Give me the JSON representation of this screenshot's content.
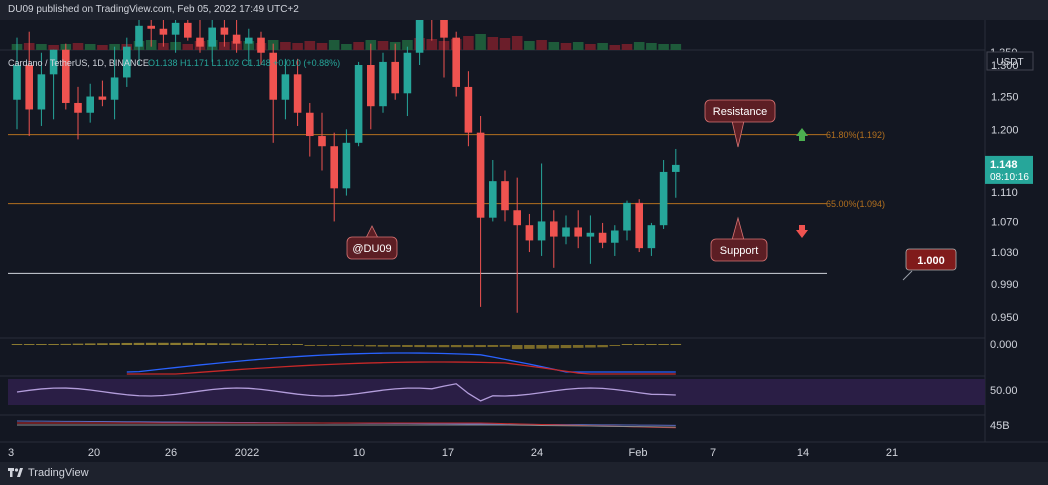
{
  "header": {
    "published": "DU09 published on TradingView.com, Feb 05, 2022 17:49 UTC+2"
  },
  "footer": {
    "brand": "TradingView"
  },
  "legend": {
    "symbol": "Cardano / TetherUS, 1D, BINANCE",
    "ohlc": "O1.138  H1.171  L1.102  C1.148  +0.010 (+0.88%)"
  },
  "colors": {
    "up": "#26a69a",
    "down": "#ef5350",
    "bg": "#131722",
    "fib": "#b2701f",
    "rsi_band": "#2a1e45",
    "rsi_line": "#b39ddb"
  },
  "chart_data": {
    "type": "candlestick",
    "title": "Cardano / TetherUS, 1D, BINANCE",
    "y_axis": {
      "unit": "USDT",
      "ticks": [
        "1.300",
        "1.250",
        "1.200",
        "1.150",
        "1.110",
        "1.070",
        "1.030",
        "0.990",
        "0.950"
      ],
      "scale": "log"
    },
    "x_axis": {
      "ticks": [
        "3",
        "20",
        "26",
        "2022",
        "10",
        "17",
        "24",
        "Feb",
        "7",
        "14",
        "21"
      ]
    },
    "candles": [
      {
        "o": 1.245,
        "h": 1.345,
        "l": 1.2,
        "c": 1.3
      },
      {
        "o": 1.3,
        "h": 1.355,
        "l": 1.19,
        "c": 1.23
      },
      {
        "o": 1.23,
        "h": 1.32,
        "l": 1.205,
        "c": 1.285
      },
      {
        "o": 1.285,
        "h": 1.325,
        "l": 1.215,
        "c": 1.325
      },
      {
        "o": 1.325,
        "h": 1.335,
        "l": 1.23,
        "c": 1.24
      },
      {
        "o": 1.24,
        "h": 1.265,
        "l": 1.185,
        "c": 1.225
      },
      {
        "o": 1.225,
        "h": 1.27,
        "l": 1.21,
        "c": 1.25
      },
      {
        "o": 1.25,
        "h": 1.275,
        "l": 1.235,
        "c": 1.245
      },
      {
        "o": 1.245,
        "h": 1.33,
        "l": 1.215,
        "c": 1.28
      },
      {
        "o": 1.28,
        "h": 1.345,
        "l": 1.265,
        "c": 1.33
      },
      {
        "o": 1.33,
        "h": 1.38,
        "l": 1.3,
        "c": 1.365
      },
      {
        "o": 1.365,
        "h": 1.38,
        "l": 1.33,
        "c": 1.36
      },
      {
        "o": 1.36,
        "h": 1.375,
        "l": 1.33,
        "c": 1.35
      },
      {
        "o": 1.35,
        "h": 1.38,
        "l": 1.32,
        "c": 1.37
      },
      {
        "o": 1.37,
        "h": 1.38,
        "l": 1.34,
        "c": 1.345
      },
      {
        "o": 1.345,
        "h": 1.375,
        "l": 1.32,
        "c": 1.33
      },
      {
        "o": 1.33,
        "h": 1.375,
        "l": 1.305,
        "c": 1.362
      },
      {
        "o": 1.362,
        "h": 1.375,
        "l": 1.33,
        "c": 1.35
      },
      {
        "o": 1.35,
        "h": 1.375,
        "l": 1.32,
        "c": 1.335
      },
      {
        "o": 1.335,
        "h": 1.36,
        "l": 1.3,
        "c": 1.345
      },
      {
        "o": 1.345,
        "h": 1.355,
        "l": 1.3,
        "c": 1.32
      },
      {
        "o": 1.32,
        "h": 1.335,
        "l": 1.18,
        "c": 1.245
      },
      {
        "o": 1.245,
        "h": 1.31,
        "l": 1.215,
        "c": 1.285
      },
      {
        "o": 1.285,
        "h": 1.31,
        "l": 1.205,
        "c": 1.225
      },
      {
        "o": 1.225,
        "h": 1.24,
        "l": 1.16,
        "c": 1.19
      },
      {
        "o": 1.19,
        "h": 1.225,
        "l": 1.14,
        "c": 1.175
      },
      {
        "o": 1.175,
        "h": 1.195,
        "l": 1.07,
        "c": 1.115
      },
      {
        "o": 1.115,
        "h": 1.2,
        "l": 1.105,
        "c": 1.18
      },
      {
        "o": 1.18,
        "h": 1.305,
        "l": 1.175,
        "c": 1.3
      },
      {
        "o": 1.3,
        "h": 1.335,
        "l": 1.2,
        "c": 1.235
      },
      {
        "o": 1.235,
        "h": 1.32,
        "l": 1.225,
        "c": 1.305
      },
      {
        "o": 1.305,
        "h": 1.335,
        "l": 1.245,
        "c": 1.255
      },
      {
        "o": 1.255,
        "h": 1.33,
        "l": 1.22,
        "c": 1.32
      },
      {
        "o": 1.32,
        "h": 1.395,
        "l": 1.3,
        "c": 1.385
      },
      {
        "o": 1.385,
        "h": 1.4,
        "l": 1.34,
        "c": 1.375
      },
      {
        "o": 1.375,
        "h": 1.395,
        "l": 1.28,
        "c": 1.345
      },
      {
        "o": 1.345,
        "h": 1.355,
        "l": 1.25,
        "c": 1.265
      },
      {
        "o": 1.265,
        "h": 1.29,
        "l": 1.175,
        "c": 1.195
      },
      {
        "o": 1.195,
        "h": 1.22,
        "l": 0.962,
        "c": 1.075
      },
      {
        "o": 1.075,
        "h": 1.155,
        "l": 1.07,
        "c": 1.125
      },
      {
        "o": 1.125,
        "h": 1.14,
        "l": 1.07,
        "c": 1.085
      },
      {
        "o": 1.085,
        "h": 1.13,
        "l": 0.955,
        "c": 1.065
      },
      {
        "o": 1.065,
        "h": 1.08,
        "l": 1.03,
        "c": 1.045
      },
      {
        "o": 1.045,
        "h": 1.15,
        "l": 1.025,
        "c": 1.07
      },
      {
        "o": 1.07,
        "h": 1.085,
        "l": 1.01,
        "c": 1.05
      },
      {
        "o": 1.05,
        "h": 1.078,
        "l": 1.04,
        "c": 1.062
      },
      {
        "o": 1.062,
        "h": 1.085,
        "l": 1.035,
        "c": 1.05
      },
      {
        "o": 1.05,
        "h": 1.078,
        "l": 1.015,
        "c": 1.055
      },
      {
        "o": 1.055,
        "h": 1.068,
        "l": 1.035,
        "c": 1.042
      },
      {
        "o": 1.042,
        "h": 1.065,
        "l": 1.025,
        "c": 1.058
      },
      {
        "o": 1.058,
        "h": 1.098,
        "l": 1.045,
        "c": 1.095
      },
      {
        "o": 1.095,
        "h": 1.1,
        "l": 1.03,
        "c": 1.035
      },
      {
        "o": 1.035,
        "h": 1.068,
        "l": 1.025,
        "c": 1.065
      },
      {
        "o": 1.065,
        "h": 1.155,
        "l": 1.06,
        "c": 1.138
      },
      {
        "o": 1.138,
        "h": 1.171,
        "l": 1.102,
        "c": 1.148
      }
    ],
    "volume_colors": [
      "up",
      "down",
      "up",
      "down",
      "up",
      "down",
      "up",
      "down",
      "up",
      "down",
      "up",
      "up",
      "down",
      "up",
      "down",
      "down",
      "up",
      "down",
      "down",
      "up",
      "down",
      "up",
      "down",
      "down",
      "down",
      "down",
      "up",
      "up",
      "down",
      "up",
      "down",
      "up",
      "up",
      "down",
      "down",
      "down",
      "down",
      "down",
      "up",
      "down",
      "down",
      "down",
      "up",
      "down",
      "up",
      "down",
      "up",
      "down",
      "up",
      "down",
      "down",
      "up",
      "up",
      "up",
      "up"
    ],
    "levels": [
      {
        "label": "61.80%(1.192)",
        "value": 1.192,
        "color": "#b2701f"
      },
      {
        "label": "65.00%(1.094)",
        "value": 1.094,
        "color": "#b2701f"
      },
      {
        "label": "",
        "value": 1.003,
        "color": "#d1d4dc"
      }
    ],
    "annotations": {
      "resistance": "Resistance",
      "support": "Support",
      "author": "@DU09",
      "price_flag": "1.000"
    },
    "price_labels": {
      "last": "1.148",
      "countdown": "08:10:16",
      "unit": "USDT",
      "top_partial": "1.350"
    },
    "macd_zero": "0.000",
    "rsi_level": "50.00",
    "volume_label": "45B"
  }
}
